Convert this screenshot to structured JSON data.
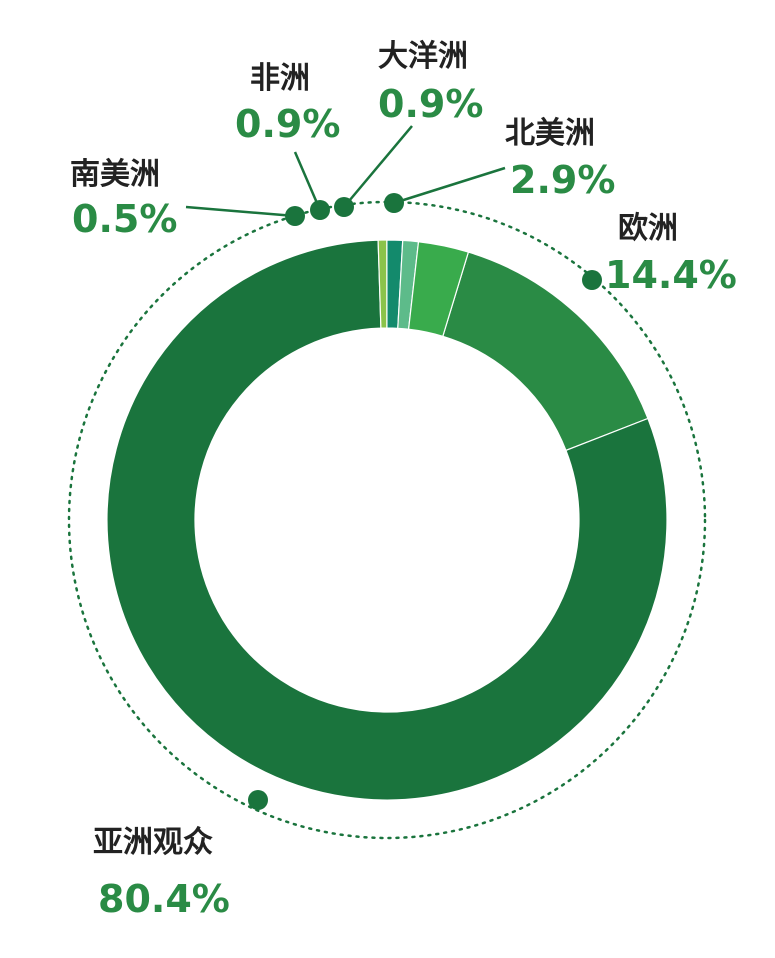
{
  "chart_data": {
    "type": "pie",
    "variant": "donut",
    "title": "",
    "slices": [
      {
        "name": "亚洲观众",
        "value": 80.4,
        "label": "80.4%",
        "color": "#1a743d"
      },
      {
        "name": "欧洲",
        "value": 14.4,
        "label": "14.4%",
        "color": "#2a8b45"
      },
      {
        "name": "北美洲",
        "value": 2.9,
        "label": "2.9%",
        "color": "#39ab4c"
      },
      {
        "name": "大洋洲",
        "value": 0.9,
        "label": "0.9%",
        "color": "#5dbb8a"
      },
      {
        "name": "非洲",
        "value": 0.9,
        "label": "0.9%",
        "color": "#138a6c"
      },
      {
        "name": "南美洲",
        "value": 0.5,
        "label": "0.5%",
        "color": "#8bc34a"
      }
    ],
    "accent_color": "#1a743d",
    "label_value_color": "#2a8b45"
  }
}
